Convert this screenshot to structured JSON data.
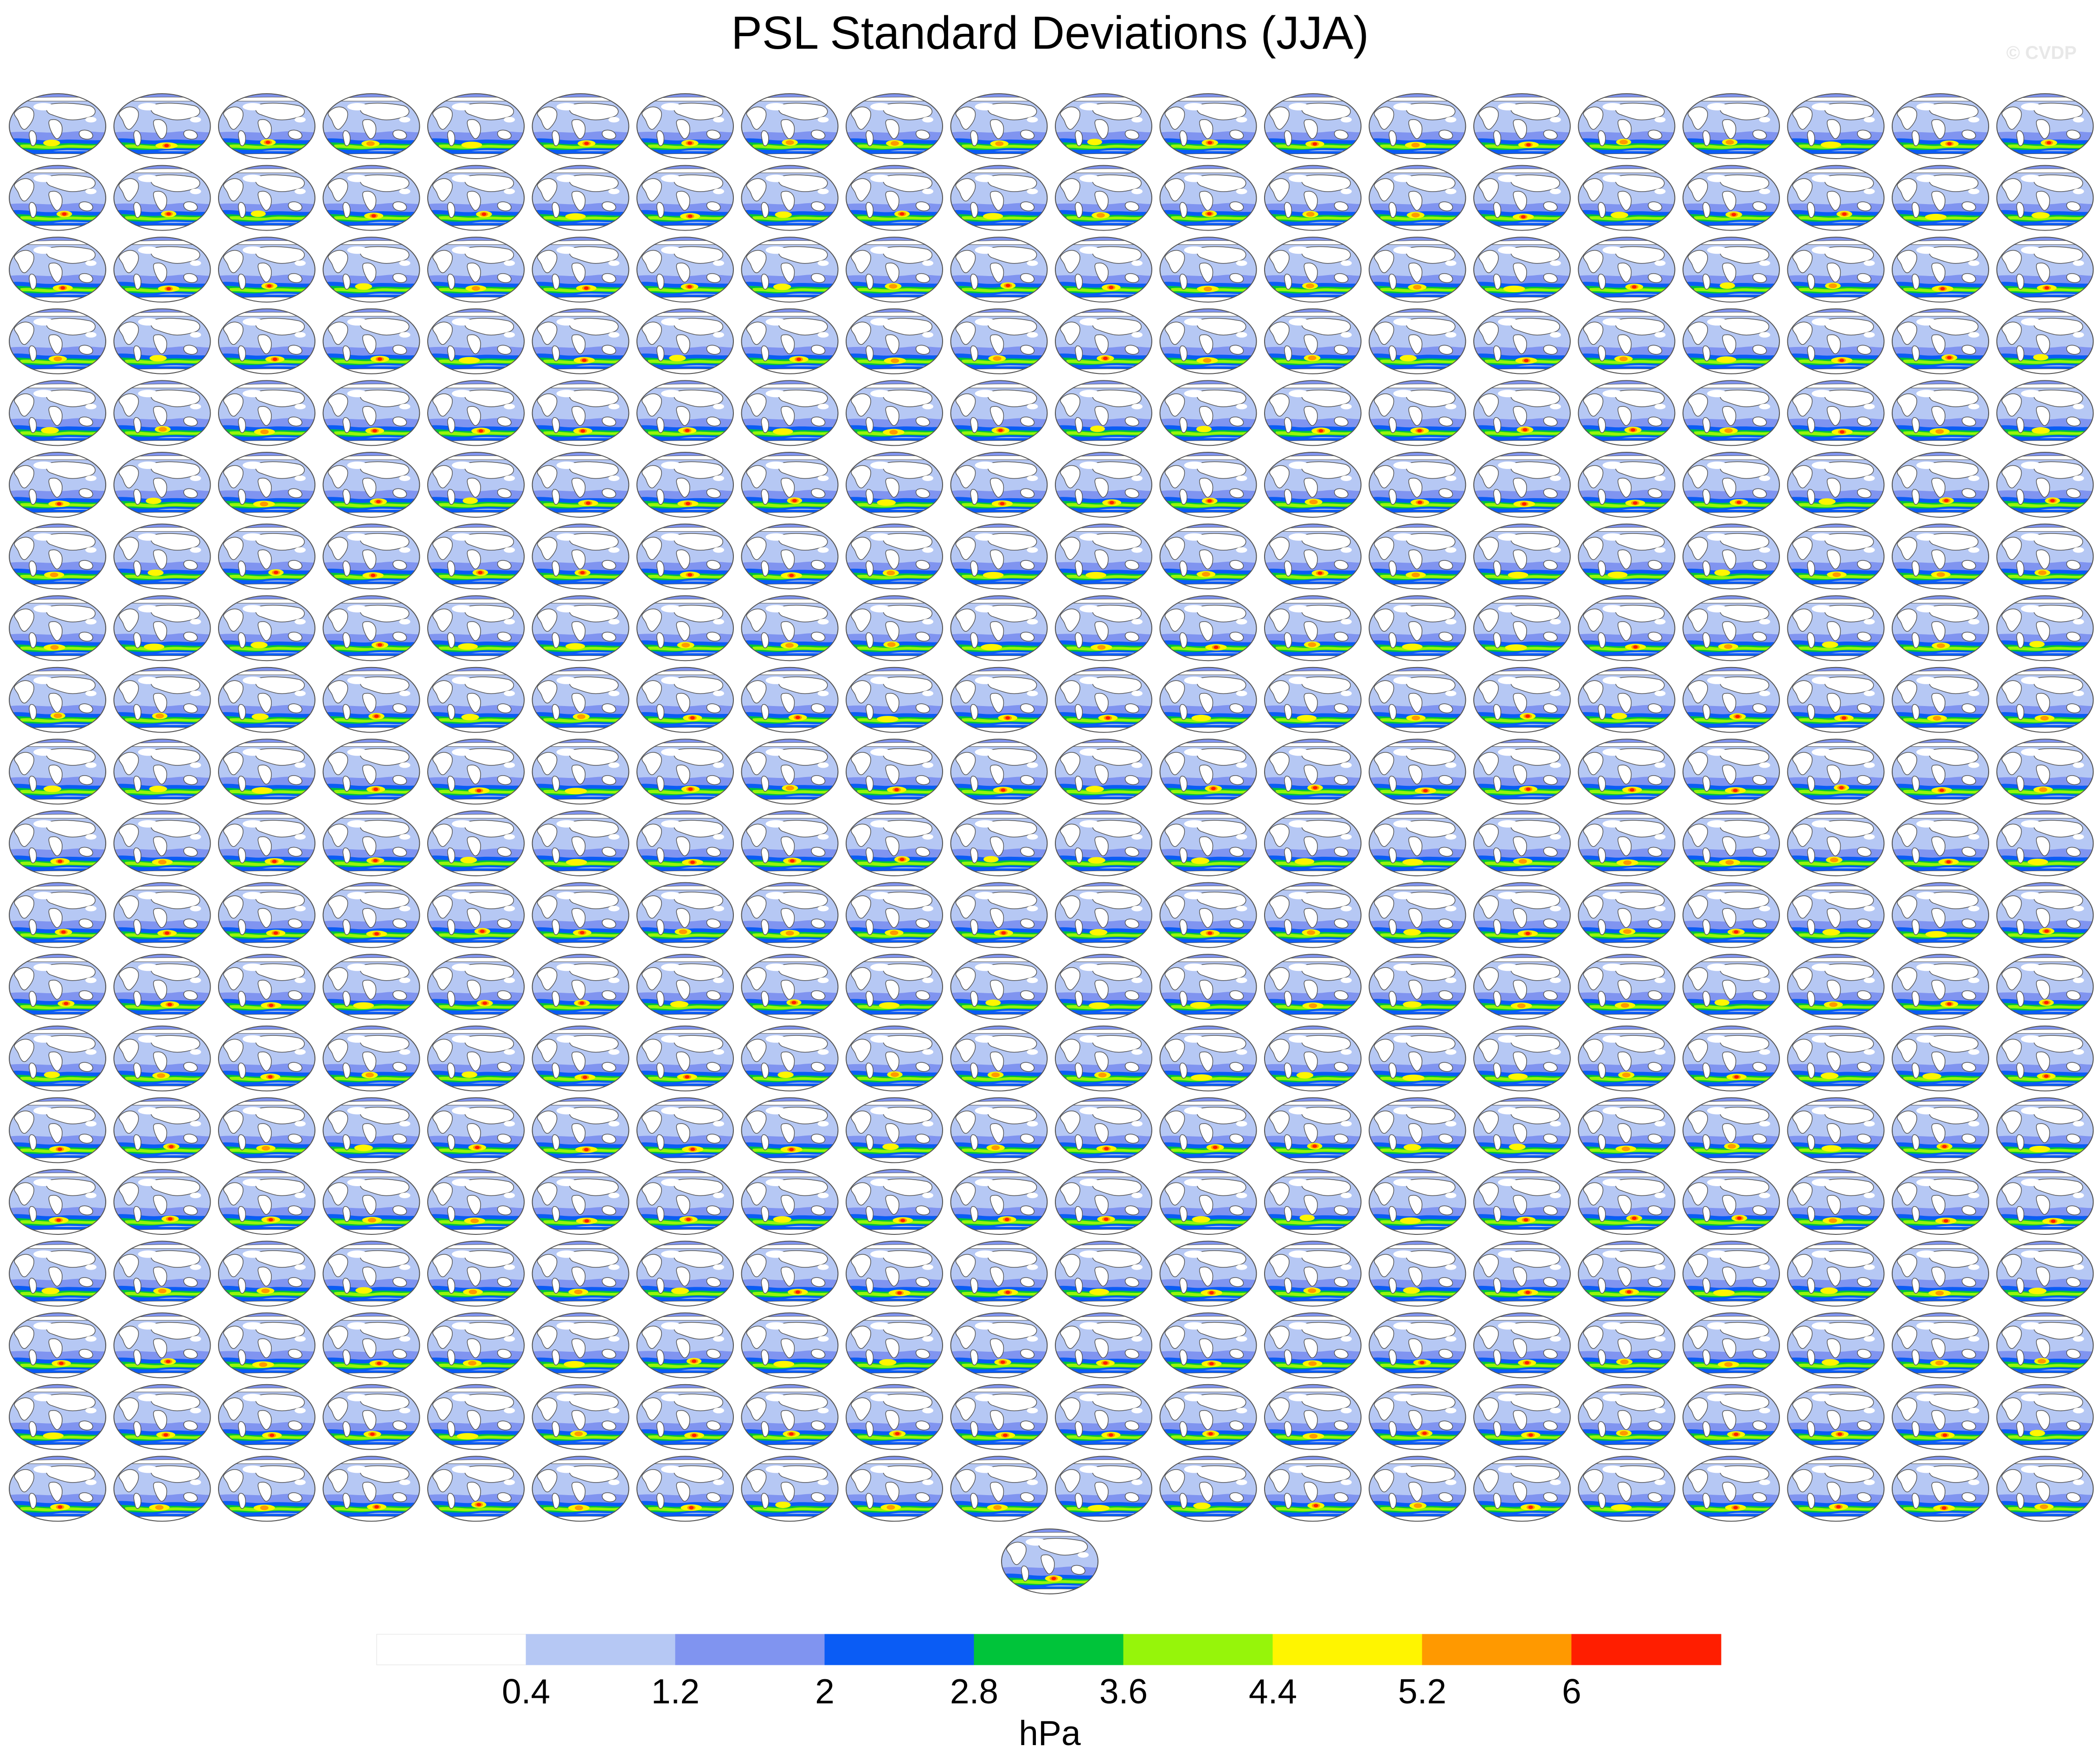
{
  "title": "PSL Standard Deviations (JJA)",
  "watermark": "© CVDP",
  "chart_data": {
    "type": "heatmap",
    "title": "PSL Standard Deviations (JJA)",
    "projection": "robinson-global-map",
    "panel_count": 401,
    "grid_columns": 20,
    "grid_rows": 20,
    "extra_centered_panels": 1,
    "colorbar": {
      "unit": "hPa",
      "levels": [
        0.4,
        1.2,
        2,
        2.8,
        3.6,
        4.4,
        5.2,
        6
      ],
      "tick_labels": [
        "0.4",
        "1.2",
        "2",
        "2.8",
        "3.6",
        "4.4",
        "5.2",
        "6"
      ],
      "colors": [
        "#ffffff",
        "#b6c8f4",
        "#8094f0",
        "#0a5cf5",
        "#00c43a",
        "#96f50a",
        "#fff500",
        "#ff9900",
        "#ff1e00"
      ],
      "orientation": "horizontal",
      "placement": "bottom"
    },
    "map_colors": {
      "land": "#ffffff",
      "low": "#b6c8f4",
      "mid": "#8094f0",
      "band_blue": "#0a5cf5",
      "band_green": "#00c43a",
      "band_lime": "#96f50a",
      "band_yellow": "#fff500",
      "peak_orange": "#ff9900",
      "peak_red": "#ff1e00",
      "coast": "#555555"
    }
  }
}
